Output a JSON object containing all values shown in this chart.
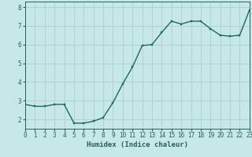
{
  "title": "",
  "xlabel": "Humidex (Indice chaleur)",
  "ylabel": "",
  "background_color": "#c6e8e6",
  "grid_color": "#aacfcc",
  "line_color": "#1a6b5a",
  "marker_color": "#1a6b5a",
  "x_values": [
    0,
    1,
    2,
    3,
    4,
    5,
    6,
    7,
    8,
    9,
    10,
    11,
    12,
    13,
    14,
    15,
    16,
    17,
    18,
    19,
    20,
    21,
    22,
    23
  ],
  "y_values": [
    2.8,
    2.7,
    2.7,
    2.8,
    2.8,
    1.8,
    1.8,
    1.9,
    2.1,
    2.9,
    3.9,
    4.8,
    5.95,
    6.0,
    6.65,
    7.25,
    7.1,
    7.25,
    7.25,
    6.85,
    6.5,
    6.45,
    6.5,
    7.85
  ],
  "xlim": [
    0,
    23
  ],
  "ylim": [
    1.5,
    8.3
  ],
  "yticks": [
    2,
    3,
    4,
    5,
    6,
    7,
    8
  ],
  "xticks": [
    0,
    1,
    2,
    3,
    4,
    5,
    6,
    7,
    8,
    9,
    10,
    11,
    12,
    13,
    14,
    15,
    16,
    17,
    18,
    19,
    20,
    21,
    22,
    23
  ],
  "tick_color": "#2a6055",
  "label_fontsize": 6.5,
  "tick_fontsize": 5.5,
  "line_width": 1.0,
  "marker_size": 2.0
}
